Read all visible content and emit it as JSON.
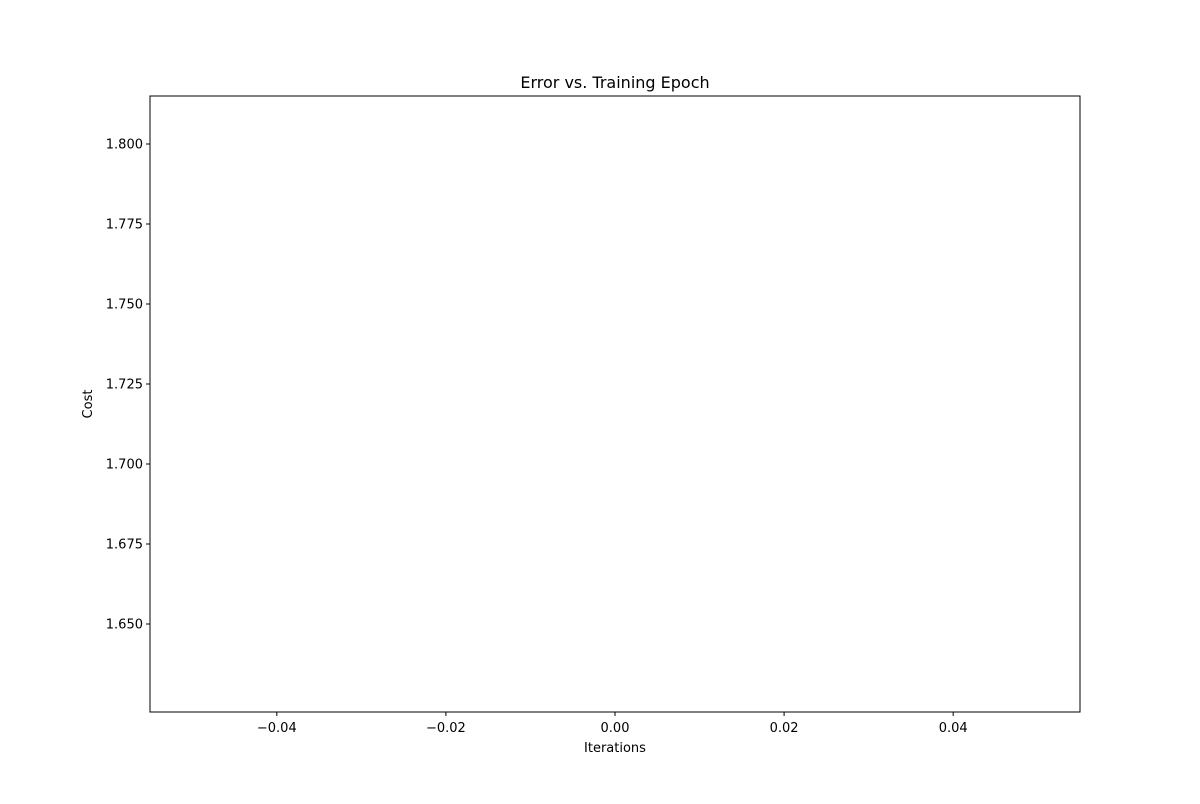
{
  "chart_data": {
    "type": "line",
    "title": "Error vs. Training Epoch",
    "xlabel": "Iterations",
    "ylabel": "Cost",
    "x_ticks": [
      -0.04,
      -0.02,
      0.0,
      0.02,
      0.04
    ],
    "x_tick_labels": [
      "−0.04",
      "−0.02",
      "0.00",
      "0.02",
      "0.04"
    ],
    "y_ticks": [
      1.65,
      1.675,
      1.7,
      1.725,
      1.75,
      1.775,
      1.8
    ],
    "y_tick_labels": [
      "1.650",
      "1.675",
      "1.700",
      "1.725",
      "1.750",
      "1.775",
      "1.800"
    ],
    "xlim": [
      -0.055,
      0.055
    ],
    "ylim": [
      1.6225,
      1.815
    ],
    "series": [
      {
        "x": [],
        "y": [],
        "color": "#1f77b4"
      }
    ],
    "grid": false
  }
}
